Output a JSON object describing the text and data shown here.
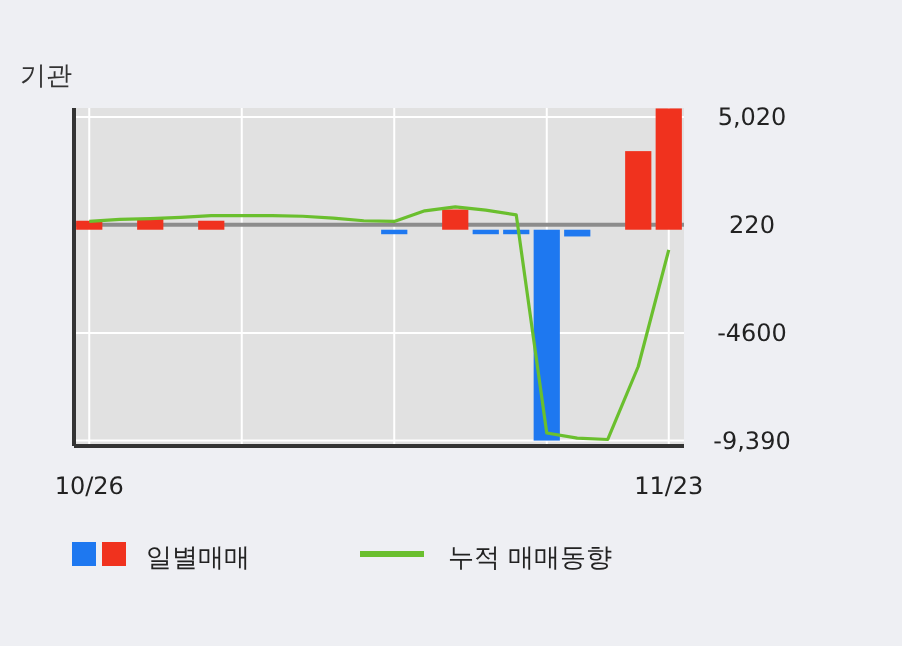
{
  "chart_data": {
    "type": "bar",
    "title": "기관",
    "categories": [
      "10/26",
      null,
      null,
      null,
      null,
      null,
      null,
      null,
      null,
      null,
      null,
      null,
      null,
      null,
      null,
      null,
      null,
      null,
      null,
      "11/23"
    ],
    "series": [
      {
        "name": "일별매매",
        "colors": [
          "#f0321e",
          "#f0321e",
          "#f0321e",
          "#f0321e",
          "#f0321e",
          "#f0321e",
          "#f0321e",
          "#f0321e",
          "#f0321e",
          "#f0321e",
          "#1e78f0",
          "#f0321e",
          "#f0321e",
          "#1e78f0",
          "#1e78f0",
          "#1e78f0",
          "#1e78f0",
          "#f0321e",
          "#f0321e",
          "#f0321e"
        ],
        "values": [
          400,
          null,
          500,
          null,
          400,
          null,
          null,
          null,
          null,
          null,
          -200,
          null,
          900,
          -200,
          -200,
          -9390,
          -300,
          null,
          3500,
          5400
        ]
      },
      {
        "type": "line",
        "name": "누적 매매동향",
        "color": "#6abf2e",
        "values": [
          370,
          460,
          490,
          550,
          630,
          630,
          630,
          600,
          520,
          400,
          370,
          840,
          1020,
          870,
          660,
          -9050,
          -9280,
          -9340,
          -6090,
          -900
        ]
      }
    ],
    "ylim": [
      -9630,
      5420
    ],
    "yticks": [
      {
        "value": 5020,
        "label": "5,020"
      },
      220,
      -4600,
      {
        "value": -9390,
        "label": "-9,390"
      }
    ],
    "ref_lines": [
      {
        "axis": "y",
        "value": 220,
        "color": "#8c8c8c"
      }
    ],
    "grid": true,
    "legend": "bottom"
  }
}
